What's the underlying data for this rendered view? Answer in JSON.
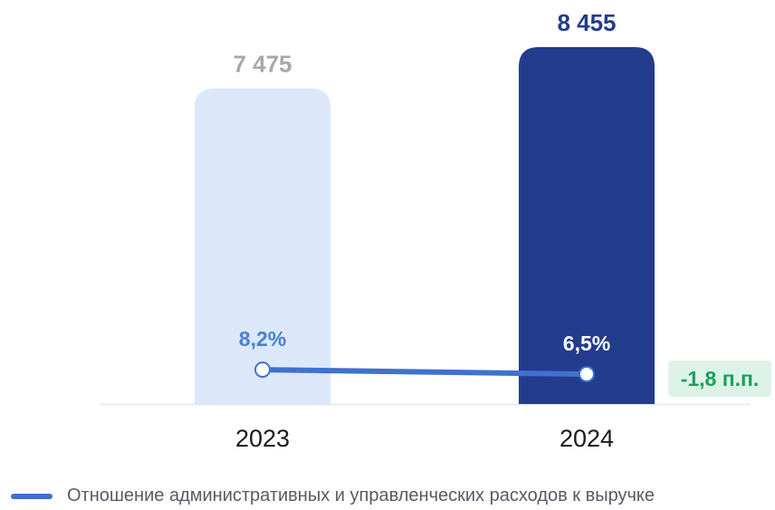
{
  "chart_data": {
    "type": "bar",
    "categories": [
      "2023",
      "2024"
    ],
    "bars": {
      "values": [
        7475,
        8455
      ],
      "value_labels": [
        "7 475",
        "8 455"
      ],
      "colors": [
        "#dce8f9",
        "#233c8e"
      ],
      "label_colors": [
        "#a8a8a8",
        "#233c8e"
      ]
    },
    "line": {
      "name": "Отношение административных и управленческих расходов к выручке",
      "values": [
        8.2,
        6.5
      ],
      "value_labels": [
        "8,2%",
        "6,5%"
      ],
      "label_colors": [
        "#4a7fd4",
        "#ffffff"
      ],
      "color": "#3f72cc"
    },
    "annotation": {
      "text": "-1,8 п.п.",
      "background": "#def3e7",
      "color": "#17a15b"
    },
    "bar_ylim": [
      0,
      8455
    ],
    "line_ylim": [
      0,
      14
    ],
    "axis_color": "#e3e6ec"
  }
}
